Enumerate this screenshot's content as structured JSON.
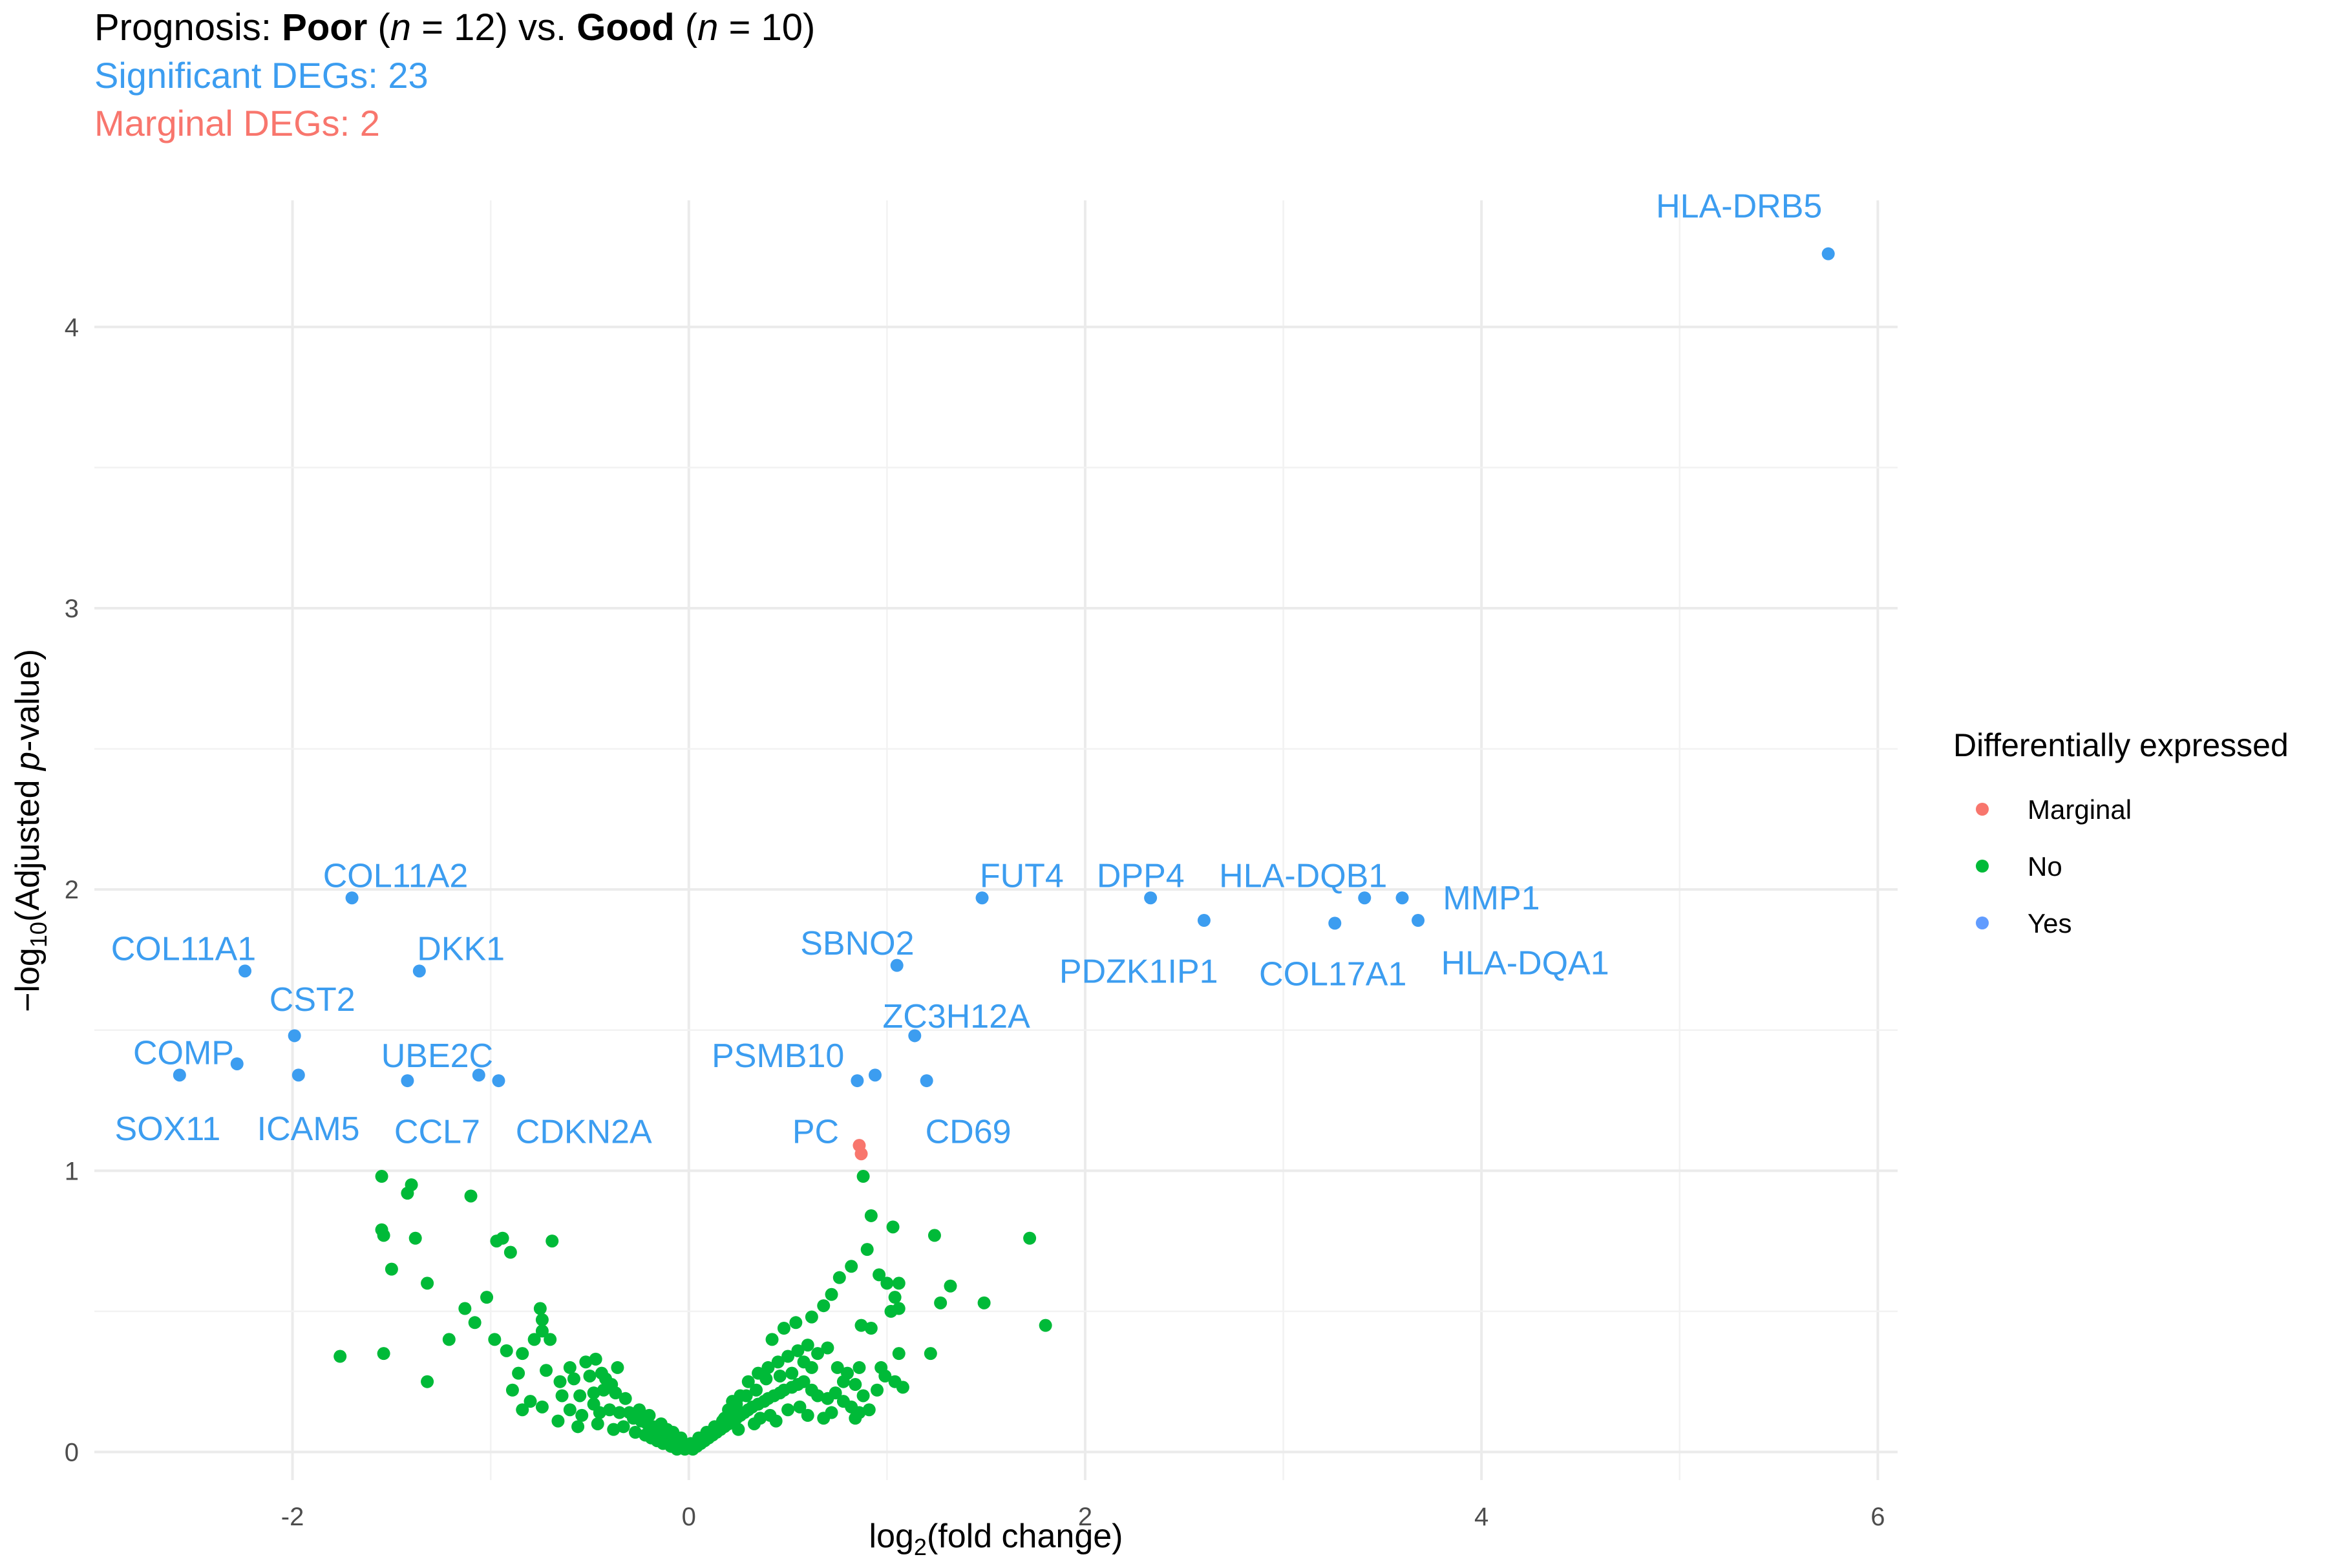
{
  "chart_data": {
    "type": "scatter",
    "title": {
      "prefix": "Prognosis: ",
      "group1": "Poor",
      "group1_n_open": " (",
      "n_symbol": "n",
      "group1_n_close": " = 12) vs. ",
      "group2": "Good",
      "group2_n_open": " (",
      "group2_n_close": " = 10)"
    },
    "subtitle_significant": "Significant DEGs: 23",
    "subtitle_marginal": "Marginal DEGs: 2",
    "xlabel": {
      "pre": "log",
      "sub": "2",
      "post": "(fold change)"
    },
    "ylabel": {
      "pre": "−log",
      "sub": "10",
      "mid": "(Adjusted ",
      "ital": "p",
      "post": "-value)"
    },
    "xlim": [
      -3.0,
      6.1
    ],
    "ylim": [
      -0.1,
      4.45
    ],
    "x_ticks": [
      -2,
      0,
      2,
      4,
      6
    ],
    "x_tick_labels": [
      "-2",
      "0",
      "2",
      "4",
      "6"
    ],
    "y_ticks": [
      0,
      1,
      2,
      3,
      4
    ],
    "y_tick_labels": [
      "0",
      "1",
      "2",
      "3",
      "4"
    ],
    "grid": true,
    "legend": {
      "title": "Differentially expressed",
      "position": "right",
      "entries": [
        {
          "label": "Marginal",
          "color": "#F8766D"
        },
        {
          "label": "No",
          "color": "#00BA38"
        },
        {
          "label": "Yes",
          "color": "#619CFF"
        }
      ]
    },
    "colors": {
      "Marginal": "#F8766D",
      "No": "#00BA38",
      "Yes": "#3C9DF0",
      "label_Yes": "#3C9DF0"
    },
    "significant": [
      {
        "gene": "HLA-DRB5",
        "x": 5.75,
        "y": 4.26,
        "label_x": 5.3,
        "label_y": 4.43
      },
      {
        "gene": "COL11A2",
        "x": -1.7,
        "y": 1.97,
        "label_x": -1.48,
        "label_y": 2.05
      },
      {
        "gene": "COL11A1",
        "x": -2.24,
        "y": 1.71,
        "label_x": -2.55,
        "label_y": 1.79
      },
      {
        "gene": "DKK1",
        "x": -1.36,
        "y": 1.71,
        "label_x": -1.15,
        "label_y": 1.79
      },
      {
        "gene": "CST2",
        "x": -1.99,
        "y": 1.48,
        "label_x": -1.9,
        "label_y": 1.61
      },
      {
        "gene": "COMP",
        "x": -2.57,
        "y": 1.34,
        "label_x": -2.55,
        "label_y": 1.42
      },
      {
        "gene": "SOX11",
        "x": -2.28,
        "y": 1.38,
        "label_x": -2.63,
        "label_y": 1.15
      },
      {
        "gene": "ICAM5",
        "x": -1.97,
        "y": 1.34,
        "label_x": -1.92,
        "label_y": 1.15
      },
      {
        "gene": "UBE2C",
        "x": -1.06,
        "y": 1.34,
        "label_x": -1.27,
        "label_y": 1.41
      },
      {
        "gene": "CCL7",
        "x": -1.42,
        "y": 1.32,
        "label_x": -1.27,
        "label_y": 1.14
      },
      {
        "gene": "CDKN2A",
        "x": -0.96,
        "y": 1.32,
        "label_x": -0.53,
        "label_y": 1.14
      },
      {
        "gene": "FUT4",
        "x": 1.48,
        "y": 1.97,
        "label_x": 1.68,
        "label_y": 2.05
      },
      {
        "gene": "DPP4",
        "x": 2.33,
        "y": 1.97,
        "label_x": 2.28,
        "label_y": 2.05
      },
      {
        "gene": "HLA-DQB1",
        "x": 3.41,
        "y": 1.97,
        "label_x": 3.1,
        "label_y": 2.05
      },
      {
        "gene": "MMP1",
        "x": 3.6,
        "y": 1.97,
        "label_x": 4.05,
        "label_y": 1.97
      },
      {
        "gene": "PDZK1IP1",
        "x": 2.6,
        "y": 1.89,
        "label_x": 2.27,
        "label_y": 1.71
      },
      {
        "gene": "COL17A1",
        "x": 3.26,
        "y": 1.88,
        "label_x": 3.25,
        "label_y": 1.7
      },
      {
        "gene": "HLA-DQA1",
        "x": 3.68,
        "y": 1.89,
        "label_x": 4.22,
        "label_y": 1.74
      },
      {
        "gene": "SBNO2",
        "x": 1.05,
        "y": 1.73,
        "label_x": 0.85,
        "label_y": 1.81
      },
      {
        "gene": "ZC3H12A",
        "x": 1.14,
        "y": 1.48,
        "label_x": 1.35,
        "label_y": 1.55
      },
      {
        "gene": "PSMB10",
        "x": 0.94,
        "y": 1.34,
        "label_x": 0.45,
        "label_y": 1.41
      },
      {
        "gene": "PC",
        "x": 0.85,
        "y": 1.32,
        "label_x": 0.64,
        "label_y": 1.14
      },
      {
        "gene": "CD69",
        "x": 1.2,
        "y": 1.32,
        "label_x": 1.41,
        "label_y": 1.14
      }
    ],
    "marginal": [
      {
        "x": 0.86,
        "y": 1.09
      },
      {
        "x": 0.87,
        "y": 1.06
      }
    ],
    "not_significant": [
      [
        -1.55,
        0.98
      ],
      [
        -1.4,
        0.95
      ],
      [
        -1.42,
        0.92
      ],
      [
        -1.1,
        0.91
      ],
      [
        -0.94,
        0.76
      ],
      [
        -0.97,
        0.75
      ],
      [
        -0.69,
        0.75
      ],
      [
        -1.55,
        0.79
      ],
      [
        -1.54,
        0.77
      ],
      [
        -1.38,
        0.76
      ],
      [
        -0.9,
        0.71
      ],
      [
        -1.5,
        0.65
      ],
      [
        -1.32,
        0.6
      ],
      [
        -1.02,
        0.55
      ],
      [
        -1.13,
        0.51
      ],
      [
        -1.08,
        0.46
      ],
      [
        -0.75,
        0.51
      ],
      [
        -0.74,
        0.47
      ],
      [
        -0.74,
        0.43
      ],
      [
        -1.76,
        0.34
      ],
      [
        -1.54,
        0.35
      ],
      [
        -1.32,
        0.25
      ],
      [
        -1.21,
        0.4
      ],
      [
        -0.98,
        0.4
      ],
      [
        -0.78,
        0.4
      ],
      [
        -0.7,
        0.4
      ],
      [
        -0.92,
        0.36
      ],
      [
        -0.84,
        0.35
      ],
      [
        -0.72,
        0.29
      ],
      [
        -0.6,
        0.3
      ],
      [
        -0.52,
        0.32
      ],
      [
        -0.47,
        0.33
      ],
      [
        -0.42,
        0.26
      ],
      [
        -0.36,
        0.3
      ],
      [
        -0.86,
        0.28
      ],
      [
        -0.65,
        0.25
      ],
      [
        -0.58,
        0.26
      ],
      [
        -0.5,
        0.27
      ],
      [
        -0.44,
        0.28
      ],
      [
        -0.39,
        0.24
      ],
      [
        -0.89,
        0.22
      ],
      [
        -0.8,
        0.18
      ],
      [
        -0.64,
        0.2
      ],
      [
        -0.55,
        0.2
      ],
      [
        -0.48,
        0.21
      ],
      [
        -0.43,
        0.22
      ],
      [
        -0.37,
        0.21
      ],
      [
        -0.32,
        0.19
      ],
      [
        -0.84,
        0.15
      ],
      [
        -0.74,
        0.16
      ],
      [
        -0.6,
        0.15
      ],
      [
        -0.54,
        0.13
      ],
      [
        -0.48,
        0.17
      ],
      [
        -0.45,
        0.14
      ],
      [
        -0.4,
        0.15
      ],
      [
        -0.35,
        0.14
      ],
      [
        -0.3,
        0.14
      ],
      [
        -0.28,
        0.12
      ],
      [
        -0.24,
        0.11
      ],
      [
        -0.21,
        0.1
      ],
      [
        -0.18,
        0.09
      ],
      [
        -0.15,
        0.08
      ],
      [
        -0.12,
        0.06
      ],
      [
        -0.1,
        0.05
      ],
      [
        -0.07,
        0.04
      ],
      [
        -0.05,
        0.03
      ],
      [
        -0.03,
        0.02
      ],
      [
        -0.66,
        0.11
      ],
      [
        -0.56,
        0.09
      ],
      [
        -0.46,
        0.1
      ],
      [
        -0.38,
        0.08
      ],
      [
        -0.33,
        0.09
      ],
      [
        -0.27,
        0.07
      ],
      [
        -0.22,
        0.06
      ],
      [
        -0.19,
        0.05
      ],
      [
        -0.16,
        0.04
      ],
      [
        -0.13,
        0.03
      ],
      [
        -0.09,
        0.02
      ],
      [
        -0.06,
        0.01
      ],
      [
        -0.02,
        0.01
      ],
      [
        -0.25,
        0.15
      ],
      [
        -0.2,
        0.13
      ],
      [
        -0.14,
        0.1
      ],
      [
        -0.11,
        0.08
      ],
      [
        0.02,
        0.01
      ],
      [
        0.04,
        0.02
      ],
      [
        0.06,
        0.03
      ],
      [
        0.08,
        0.04
      ],
      [
        0.1,
        0.05
      ],
      [
        0.12,
        0.06
      ],
      [
        0.14,
        0.07
      ],
      [
        0.16,
        0.08
      ],
      [
        0.18,
        0.09
      ],
      [
        0.2,
        0.1
      ],
      [
        0.22,
        0.11
      ],
      [
        0.24,
        0.12
      ],
      [
        0.26,
        0.13
      ],
      [
        0.28,
        0.14
      ],
      [
        0.3,
        0.15
      ],
      [
        0.32,
        0.16
      ],
      [
        0.35,
        0.17
      ],
      [
        0.38,
        0.18
      ],
      [
        0.4,
        0.19
      ],
      [
        0.43,
        0.2
      ],
      [
        0.46,
        0.21
      ],
      [
        0.48,
        0.22
      ],
      [
        0.52,
        0.23
      ],
      [
        0.55,
        0.24
      ],
      [
        0.58,
        0.25
      ],
      [
        0.62,
        0.22
      ],
      [
        0.65,
        0.2
      ],
      [
        0.7,
        0.19
      ],
      [
        0.74,
        0.21
      ],
      [
        0.78,
        0.18
      ],
      [
        0.82,
        0.16
      ],
      [
        0.86,
        0.14
      ],
      [
        0.3,
        0.25
      ],
      [
        0.35,
        0.28
      ],
      [
        0.4,
        0.3
      ],
      [
        0.45,
        0.32
      ],
      [
        0.5,
        0.34
      ],
      [
        0.55,
        0.36
      ],
      [
        0.6,
        0.38
      ],
      [
        0.65,
        0.35
      ],
      [
        0.7,
        0.37
      ],
      [
        0.75,
        0.3
      ],
      [
        0.8,
        0.28
      ],
      [
        0.42,
        0.4
      ],
      [
        0.48,
        0.44
      ],
      [
        0.54,
        0.46
      ],
      [
        0.62,
        0.48
      ],
      [
        0.68,
        0.52
      ],
      [
        0.72,
        0.56
      ],
      [
        0.76,
        0.62
      ],
      [
        0.82,
        0.66
      ],
      [
        0.9,
        0.72
      ],
      [
        0.88,
        0.98
      ],
      [
        0.92,
        0.84
      ],
      [
        1.03,
        0.8
      ],
      [
        0.96,
        0.63
      ],
      [
        1.0,
        0.6
      ],
      [
        1.06,
        0.6
      ],
      [
        1.04,
        0.55
      ],
      [
        1.02,
        0.5
      ],
      [
        0.87,
        0.45
      ],
      [
        0.92,
        0.44
      ],
      [
        1.06,
        0.51
      ],
      [
        1.24,
        0.77
      ],
      [
        1.32,
        0.59
      ],
      [
        1.27,
        0.53
      ],
      [
        1.49,
        0.53
      ],
      [
        1.72,
        0.76
      ],
      [
        1.8,
        0.45
      ],
      [
        1.22,
        0.35
      ],
      [
        1.06,
        0.35
      ],
      [
        0.97,
        0.3
      ],
      [
        1.04,
        0.25
      ],
      [
        0.88,
        0.2
      ],
      [
        0.91,
        0.15
      ],
      [
        0.84,
        0.12
      ],
      [
        0.95,
        0.22
      ],
      [
        0.99,
        0.27
      ],
      [
        1.08,
        0.23
      ],
      [
        0.26,
        0.2
      ],
      [
        0.22,
        0.18
      ],
      [
        0.2,
        0.15
      ],
      [
        0.18,
        0.12
      ],
      [
        0.25,
        0.08
      ],
      [
        0.33,
        0.1
      ],
      [
        0.36,
        0.12
      ],
      [
        0.41,
        0.13
      ],
      [
        0.44,
        0.11
      ],
      [
        0.5,
        0.15
      ],
      [
        0.56,
        0.16
      ],
      [
        0.6,
        0.13
      ],
      [
        0.68,
        0.12
      ],
      [
        0.72,
        0.14
      ],
      [
        0.78,
        0.25
      ],
      [
        0.84,
        0.24
      ],
      [
        0.86,
        0.3
      ],
      [
        0.62,
        0.3
      ],
      [
        0.58,
        0.32
      ],
      [
        0.52,
        0.28
      ],
      [
        0.46,
        0.27
      ],
      [
        0.39,
        0.26
      ],
      [
        0.34,
        0.22
      ],
      [
        0.29,
        0.2
      ],
      [
        0.24,
        0.17
      ],
      [
        -0.04,
        0.05
      ],
      [
        -0.08,
        0.07
      ],
      [
        0.01,
        0.03
      ],
      [
        0.05,
        0.05
      ],
      [
        0.09,
        0.07
      ],
      [
        0.13,
        0.09
      ],
      [
        0.17,
        0.11
      ],
      [
        0.21,
        0.14
      ]
    ]
  }
}
